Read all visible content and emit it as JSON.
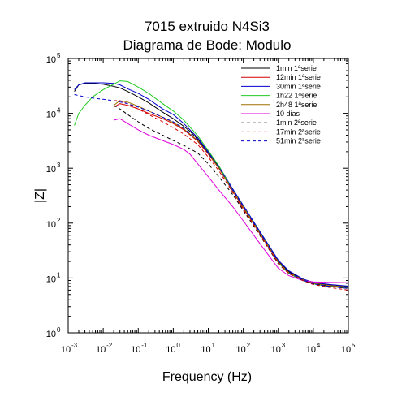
{
  "chart_data": {
    "type": "line",
    "title_line1": "7015 extruido N4Si3",
    "title_line2": "Diagrama de Bode: Modulo",
    "xlabel": "Frequency (Hz)",
    "ylabel": "|Z|",
    "xscale": "log",
    "yscale": "log",
    "xlim": [
      0.001,
      100000
    ],
    "ylim": [
      1,
      100000
    ],
    "x_tick_exponents": [
      -3,
      -2,
      -1,
      0,
      1,
      2,
      3,
      4,
      5
    ],
    "y_tick_exponents": [
      0,
      1,
      2,
      3,
      4,
      5
    ],
    "tick_base": "10",
    "grid": false,
    "legend_position": "top-right",
    "series": [
      {
        "name": "1min 1ªserie",
        "color": "#000000",
        "dash": "solid",
        "points": [
          [
            0.0015,
            25000
          ],
          [
            0.002,
            33000
          ],
          [
            0.003,
            35000
          ],
          [
            0.005,
            35000
          ],
          [
            0.01,
            34000
          ],
          [
            0.02,
            31000
          ],
          [
            0.03,
            29000
          ],
          [
            0.05,
            25000
          ],
          [
            0.1,
            20000
          ],
          [
            0.2,
            15500
          ],
          [
            0.5,
            10500
          ],
          [
            1,
            8000
          ],
          [
            2,
            5800
          ],
          [
            3,
            4700
          ],
          [
            5,
            3400
          ],
          [
            10,
            1900
          ],
          [
            20,
            1050
          ],
          [
            50,
            400
          ],
          [
            100,
            200
          ],
          [
            200,
            100
          ],
          [
            500,
            40
          ],
          [
            1000,
            20
          ],
          [
            2000,
            13
          ],
          [
            5000,
            9.5
          ],
          [
            10000,
            8.2
          ],
          [
            30000,
            7.5
          ],
          [
            100000,
            7
          ]
        ]
      },
      {
        "name": "12min 1ªserie",
        "color": "#d40000",
        "dash": "solid",
        "points": [
          [
            0.02,
            13000
          ],
          [
            0.03,
            15000
          ],
          [
            0.05,
            14000
          ],
          [
            0.1,
            12000
          ],
          [
            0.2,
            10000
          ],
          [
            0.5,
            8000
          ],
          [
            1,
            6500
          ],
          [
            2,
            5000
          ],
          [
            5,
            3100
          ],
          [
            10,
            1800
          ],
          [
            20,
            1000
          ],
          [
            50,
            380
          ],
          [
            100,
            190
          ],
          [
            200,
            95
          ],
          [
            500,
            38
          ],
          [
            1000,
            19
          ],
          [
            2000,
            12.5
          ],
          [
            5000,
            9.3
          ],
          [
            10000,
            8
          ],
          [
            30000,
            7.2
          ],
          [
            100000,
            6.8
          ]
        ]
      },
      {
        "name": "30min 1ªserie",
        "color": "#0000cc",
        "dash": "solid",
        "points": [
          [
            0.0015,
            27000
          ],
          [
            0.002,
            33000
          ],
          [
            0.003,
            36000
          ],
          [
            0.005,
            36000
          ],
          [
            0.01,
            36000
          ],
          [
            0.02,
            35000
          ],
          [
            0.03,
            33000
          ],
          [
            0.05,
            28000
          ],
          [
            0.1,
            23000
          ],
          [
            0.2,
            18000
          ],
          [
            0.5,
            12000
          ],
          [
            1,
            9500
          ],
          [
            2,
            6500
          ],
          [
            5,
            3600
          ],
          [
            10,
            2000
          ],
          [
            20,
            1100
          ],
          [
            50,
            420
          ],
          [
            100,
            210
          ],
          [
            200,
            105
          ],
          [
            500,
            42
          ],
          [
            1000,
            21
          ],
          [
            2000,
            13.5
          ],
          [
            5000,
            9.6
          ],
          [
            10000,
            8.3
          ],
          [
            30000,
            7.6
          ],
          [
            100000,
            7.1
          ]
        ]
      },
      {
        "name": "1h22 1ªserie",
        "color": "#22cc22",
        "dash": "solid",
        "points": [
          [
            0.0015,
            6000
          ],
          [
            0.002,
            10000
          ],
          [
            0.003,
            14000
          ],
          [
            0.005,
            20000
          ],
          [
            0.01,
            27000
          ],
          [
            0.02,
            34000
          ],
          [
            0.03,
            39000
          ],
          [
            0.05,
            38000
          ],
          [
            0.1,
            30000
          ],
          [
            0.2,
            23000
          ],
          [
            0.5,
            15000
          ],
          [
            1,
            11000
          ],
          [
            2,
            7500
          ],
          [
            5,
            3900
          ],
          [
            10,
            2100
          ],
          [
            20,
            1100
          ],
          [
            50,
            400
          ],
          [
            100,
            200
          ],
          [
            200,
            100
          ],
          [
            500,
            40
          ],
          [
            1000,
            19
          ],
          [
            2000,
            12
          ],
          [
            5000,
            9
          ],
          [
            10000,
            7.8
          ],
          [
            30000,
            7
          ],
          [
            100000,
            6.5
          ]
        ]
      },
      {
        "name": "2h48 1ªserie",
        "color": "#a07000",
        "dash": "solid",
        "points": [
          [
            0.02,
            14000
          ],
          [
            0.03,
            17000
          ],
          [
            0.05,
            16000
          ],
          [
            0.1,
            13500
          ],
          [
            0.2,
            11000
          ],
          [
            0.5,
            8500
          ],
          [
            1,
            6800
          ],
          [
            2,
            5200
          ],
          [
            5,
            3200
          ],
          [
            10,
            1850
          ],
          [
            20,
            1000
          ],
          [
            50,
            390
          ],
          [
            100,
            195
          ],
          [
            200,
            98
          ],
          [
            500,
            39
          ],
          [
            1000,
            19.5
          ],
          [
            2000,
            12.5
          ],
          [
            5000,
            9.3
          ],
          [
            10000,
            8
          ],
          [
            30000,
            7.2
          ],
          [
            100000,
            6.8
          ]
        ]
      },
      {
        "name": "10 dias",
        "color": "#e000e0",
        "dash": "solid",
        "points": [
          [
            0.02,
            7500
          ],
          [
            0.03,
            8000
          ],
          [
            0.05,
            6500
          ],
          [
            0.1,
            5000
          ],
          [
            0.2,
            4000
          ],
          [
            0.5,
            3200
          ],
          [
            1,
            2700
          ],
          [
            2,
            2200
          ],
          [
            3,
            1800
          ],
          [
            5,
            1200
          ],
          [
            10,
            700
          ],
          [
            20,
            400
          ],
          [
            50,
            200
          ],
          [
            100,
            110
          ],
          [
            200,
            60
          ],
          [
            500,
            27
          ],
          [
            1000,
            15
          ],
          [
            2000,
            11
          ],
          [
            5000,
            9
          ],
          [
            10000,
            8.5
          ],
          [
            30000,
            8.3
          ],
          [
            100000,
            8.2
          ]
        ]
      },
      {
        "name": "1min 2ªserie",
        "color": "#000000",
        "dash": "dashed",
        "points": [
          [
            0.02,
            14000
          ],
          [
            0.03,
            12000
          ],
          [
            0.05,
            9500
          ],
          [
            0.1,
            7000
          ],
          [
            0.2,
            5300
          ],
          [
            0.5,
            4000
          ],
          [
            1,
            3200
          ],
          [
            2,
            2600
          ],
          [
            5,
            1900
          ],
          [
            10,
            1200
          ],
          [
            20,
            700
          ],
          [
            50,
            330
          ],
          [
            100,
            170
          ],
          [
            200,
            88
          ],
          [
            500,
            36
          ],
          [
            1000,
            18
          ],
          [
            2000,
            12
          ],
          [
            5000,
            9
          ],
          [
            10000,
            7.8
          ],
          [
            30000,
            7
          ],
          [
            100000,
            6.5
          ]
        ]
      },
      {
        "name": "17min 2ªserie",
        "color": "#d40000",
        "dash": "dashed",
        "points": [
          [
            0.02,
            17000
          ],
          [
            0.03,
            17000
          ],
          [
            0.05,
            15000
          ],
          [
            0.1,
            12000
          ],
          [
            0.2,
            9500
          ],
          [
            0.5,
            7000
          ],
          [
            1,
            5500
          ],
          [
            2,
            4200
          ],
          [
            5,
            2700
          ],
          [
            10,
            1600
          ],
          [
            20,
            900
          ],
          [
            50,
            360
          ],
          [
            100,
            180
          ],
          [
            200,
            92
          ],
          [
            500,
            37
          ],
          [
            1000,
            18.5
          ],
          [
            2000,
            12
          ],
          [
            5000,
            9
          ],
          [
            10000,
            7.6
          ],
          [
            30000,
            6.7
          ],
          [
            100000,
            6
          ]
        ]
      },
      {
        "name": "51min 2ªserie",
        "color": "#0000cc",
        "dash": "dashed",
        "points": [
          [
            0.0015,
            22000
          ],
          [
            0.003,
            20000
          ],
          [
            0.005,
            19000
          ],
          [
            0.01,
            18000
          ],
          [
            0.02,
            17000
          ],
          [
            0.05,
            15000
          ],
          [
            0.1,
            13000
          ],
          [
            0.2,
            11000
          ],
          [
            0.5,
            8500
          ],
          [
            1,
            7000
          ],
          [
            2,
            5300
          ],
          [
            5,
            3300
          ],
          [
            10,
            1900
          ],
          [
            20,
            1050
          ],
          [
            50,
            400
          ],
          [
            100,
            200
          ],
          [
            200,
            100
          ],
          [
            500,
            40
          ],
          [
            1000,
            20
          ],
          [
            2000,
            12.5
          ],
          [
            5000,
            9.2
          ],
          [
            10000,
            7.8
          ],
          [
            30000,
            7
          ],
          [
            100000,
            6.4
          ]
        ]
      }
    ]
  }
}
